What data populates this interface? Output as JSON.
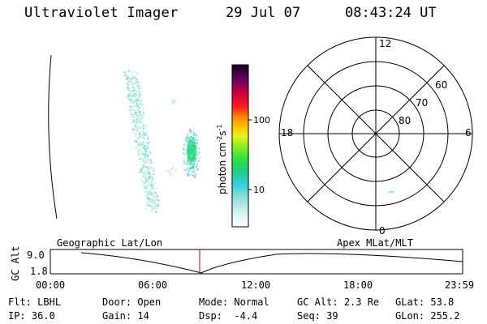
{
  "header": {
    "title": "Ultraviolet Imager",
    "date": "29 Jul 07",
    "time": "08:43:24 UT"
  },
  "colorbar": {
    "label": "photon cm",
    "label_sup1": "-2",
    "label_mid": "s",
    "label_sup2": "-1",
    "ticks": [
      "100",
      "10"
    ]
  },
  "polar": {
    "mlt_labels": {
      "top": "12",
      "left": "18",
      "right": "6",
      "bottom": "0"
    },
    "lat_labels": [
      "60",
      "70",
      "80"
    ]
  },
  "timeline": {
    "geo_label": "Geographic Lat/Lon",
    "apex_label": "Apex MLat/MLT",
    "axis_label": "GC Alt",
    "y_max": "9.0",
    "y_min": "1.8",
    "x_ticks": [
      "00:00",
      "06:00",
      "12:00",
      "18:00",
      "23:59"
    ]
  },
  "info": {
    "row1": [
      {
        "key": "Flt:",
        "value": "LBHL"
      },
      {
        "key": "Door:",
        "value": "Open"
      },
      {
        "key": "Mode:",
        "value": "Normal"
      },
      {
        "key": "GC Alt:",
        "value": "2.3 Re"
      },
      {
        "key": "GLat:",
        "value": "53.8"
      }
    ],
    "row2": [
      {
        "key": "IP:",
        "value": "36.0"
      },
      {
        "key": "Gain:",
        "value": "14"
      },
      {
        "key": "Dsp:",
        "value": "-4.4"
      },
      {
        "key": "Seq:",
        "value": "39"
      },
      {
        "key": "GLon:",
        "value": "255.2"
      }
    ]
  },
  "colors": {
    "faint": "#c8ece6",
    "mid": "#7fdcd0",
    "cyan": "#3fcfd8",
    "green": "#30e040",
    "marker": "#cc0000"
  }
}
